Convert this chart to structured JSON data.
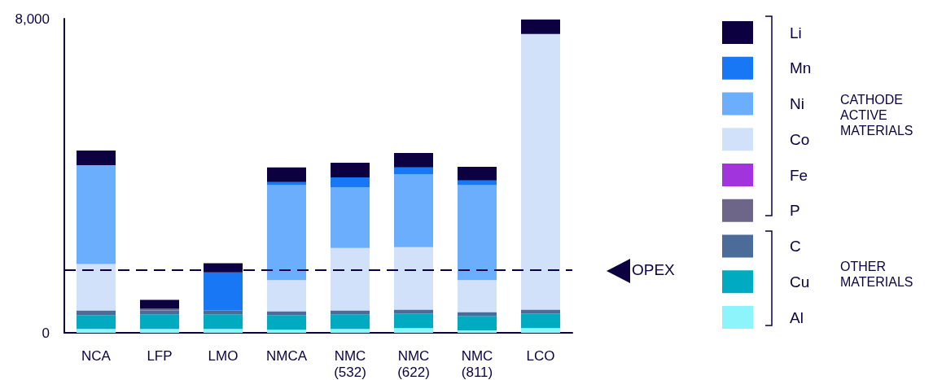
{
  "chart_data": {
    "type": "bar",
    "stacked": true,
    "categories": [
      "NCA",
      "LFP",
      "LMO",
      "NMCA",
      "NMC\n(532)",
      "NMC\n(622)",
      "NMC\n(811)",
      "LCO"
    ],
    "series": [
      {
        "name": "Al",
        "color": "#8ef4fc",
        "values": [
          100,
          100,
          100,
          80,
          100,
          120,
          60,
          120
        ]
      },
      {
        "name": "Cu",
        "color": "#00aac1",
        "values": [
          350,
          370,
          370,
          370,
          370,
          370,
          370,
          370
        ]
      },
      {
        "name": "C",
        "color": "#4b6b98",
        "values": [
          120,
          100,
          100,
          100,
          100,
          100,
          100,
          100
        ]
      },
      {
        "name": "P",
        "color": "#6e6688",
        "values": [
          0,
          40,
          0,
          0,
          0,
          0,
          0,
          0
        ]
      },
      {
        "name": "Fe",
        "color": "#a234de",
        "values": [
          0,
          0,
          0,
          0,
          0,
          0,
          0,
          0
        ]
      },
      {
        "name": "Co",
        "color": "#d2e1fa",
        "values": [
          1180,
          0,
          0,
          790,
          1590,
          1590,
          810,
          7020
        ]
      },
      {
        "name": "Ni",
        "color": "#6caefe",
        "values": [
          2520,
          0,
          0,
          2420,
          1550,
          1860,
          2420,
          0
        ]
      },
      {
        "name": "Mn",
        "color": "#1777f5",
        "values": [
          0,
          0,
          970,
          80,
          250,
          170,
          120,
          0
        ]
      },
      {
        "name": "Li",
        "color": "#0c0040",
        "values": [
          370,
          230,
          230,
          370,
          370,
          370,
          350,
          370
        ]
      }
    ],
    "ylim": [
      0,
      8000
    ],
    "yticks": [
      0,
      {
        "value": 8000,
        "label": "8,000"
      }
    ],
    "grid": false,
    "legend": "right",
    "ref_lines": [
      {
        "axis": "y",
        "value": 1610,
        "label": "OPEX",
        "color": "#0c0040",
        "line_style": "dashed"
      }
    ],
    "annotations": [
      "CATHODE ACTIVE MATERIALS",
      "OTHER MATERIALS"
    ]
  }
}
